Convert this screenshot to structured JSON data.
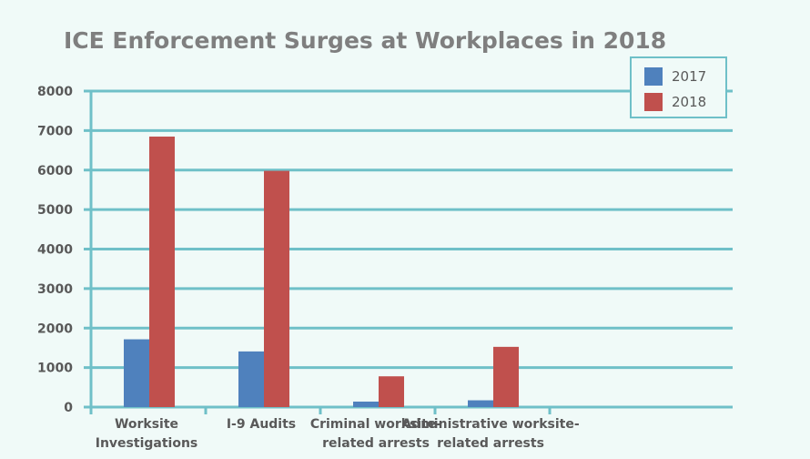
{
  "chart_data": {
    "type": "bar",
    "title": "ICE Enforcement Surges at Workplaces in 2018",
    "categories": [
      [
        "Worksite",
        "Investigations"
      ],
      [
        "I-9 Audits"
      ],
      [
        "Criminal worksite-",
        "related arrests"
      ],
      [
        "Administrative worksite-",
        "related arrests"
      ]
    ],
    "series": [
      {
        "name": "2017",
        "color": "#4f81bd",
        "values": [
          1716,
          1409,
          139,
          172
        ]
      },
      {
        "name": "2018",
        "color": "#c0504d",
        "values": [
          6848,
          5981,
          779,
          1525
        ]
      }
    ],
    "ylim": [
      0,
      8000
    ],
    "yticks": [
      0,
      1000,
      2000,
      3000,
      4000,
      5000,
      6000,
      7000,
      8000
    ],
    "grid": true,
    "legend_position": "top-right",
    "gridline_color": "#6fc0c8"
  }
}
